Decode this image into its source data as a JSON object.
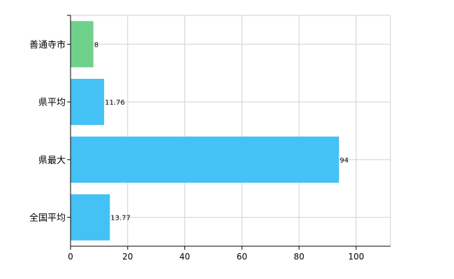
{
  "chart_data": {
    "type": "bar",
    "orientation": "horizontal",
    "categories": [
      "善通寺市",
      "県平均",
      "県最大",
      "全国平均"
    ],
    "values": [
      8,
      11.76,
      94,
      13.77
    ],
    "value_labels": [
      "8",
      "11.76",
      "94",
      "13.77"
    ],
    "bar_colors": [
      "#6fd08c",
      "#44c1f5",
      "#44c1f5",
      "#44c1f5"
    ],
    "xlim": [
      0,
      112
    ],
    "x_ticks": [
      0,
      20,
      40,
      60,
      80,
      100
    ],
    "x_tick_labels": [
      "0",
      "20",
      "40",
      "60",
      "80",
      "100"
    ],
    "grid": true,
    "title": "",
    "xlabel": "",
    "ylabel": ""
  },
  "colors": {
    "grid": "#d0d0d0",
    "axis": "#000000",
    "highlight_bar": "#6fd08c",
    "bar": "#44c1f5"
  }
}
